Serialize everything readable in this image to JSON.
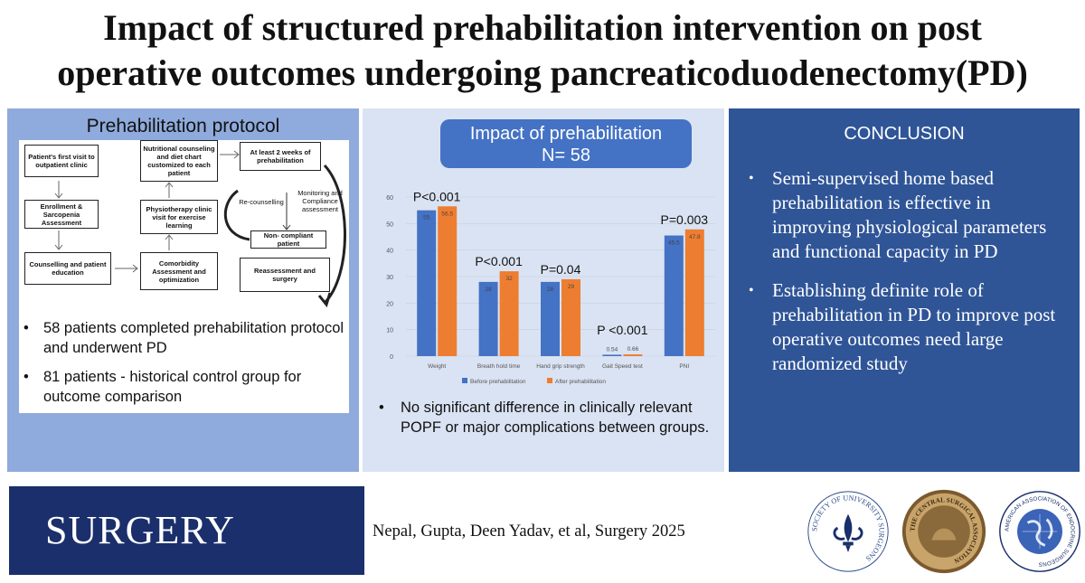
{
  "title": {
    "line1": "Impact of structured prehabilitation intervention on post",
    "line2": "operative outcomes undergoing pancreaticoduodenectomy(PD)"
  },
  "protocol": {
    "title": "Prehabilitation protocol",
    "flow": {
      "first_visit": "Patient's first visit to outpatient clinic",
      "enrollment": "Enrollment & Sarcopenia Assessment",
      "counselling": "Counselling and patient education",
      "nutrition": "Nutritional counseling and diet chart customized to each patient",
      "physio": "Physiotherapy clinic visit for exercise learning",
      "comorbidity": "Comorbidity Assessment and optimization",
      "two_weeks": "At least 2 weeks of prehabilitation",
      "recounselling": "Re-counselling",
      "monitoring": "Monitoring and Compliance assessment",
      "noncompliant": "Non- compliant patient",
      "reassessment": "Reassessment and surgery"
    },
    "bullets": [
      "58 patients completed prehabilitation protocol and underwent PD",
      "81 patients - historical control group for outcome comparison"
    ]
  },
  "impact": {
    "title_line1": "Impact of prehabilitation",
    "title_line2": "N= 58",
    "bullet": "No significant difference in clinically relevant POPF or major complications between groups."
  },
  "chart_data": {
    "type": "bar",
    "categories": [
      "Weight",
      "Breath hold time",
      "Hand grip strength",
      "Gait Speed test",
      "PNI"
    ],
    "series": [
      {
        "name": "Before prehabilitation",
        "values": [
          55,
          28,
          28,
          0.54,
          45.5
        ],
        "labels": [
          "55",
          "28",
          "28",
          "0.54",
          "45.5"
        ],
        "color": "#4472c4"
      },
      {
        "name": "After prehabilitation",
        "values": [
          56.5,
          32,
          29,
          0.66,
          47.8
        ],
        "labels": [
          "56.5",
          "32",
          "29",
          "0.66",
          "47.8"
        ],
        "color": "#ed7d31"
      }
    ],
    "p_values": [
      "P<0.001",
      "P<0.001",
      "P=0.04",
      "P <0.001",
      "P=0.003"
    ],
    "ylim": [
      0,
      60
    ],
    "yticks": [
      "0",
      "10",
      "20",
      "30",
      "40",
      "50",
      "60"
    ],
    "legend": "bottom"
  },
  "conclusion": {
    "title": "CONCLUSION",
    "bullets": [
      "Semi-supervised home based prehabilitation is effective in improving physiological parameters and functional capacity in PD",
      "Establishing definite role of prehabilitation in PD to improve post operative outcomes need large randomized study"
    ]
  },
  "footer": {
    "journal": "SURGERY",
    "citation": "Nepal, Gupta, Deen Yadav, et al, Surgery 2025",
    "logo1_text": "SOCIETY OF UNIVERSITY SURGEONS",
    "logo2_text": "THE CENTRAL SURGICAL ASSOCIATION",
    "logo3_text": "AMERICAN ASSOCIATION OF ENDOCRINE SURGEONS"
  },
  "bullet_symbol": "•"
}
